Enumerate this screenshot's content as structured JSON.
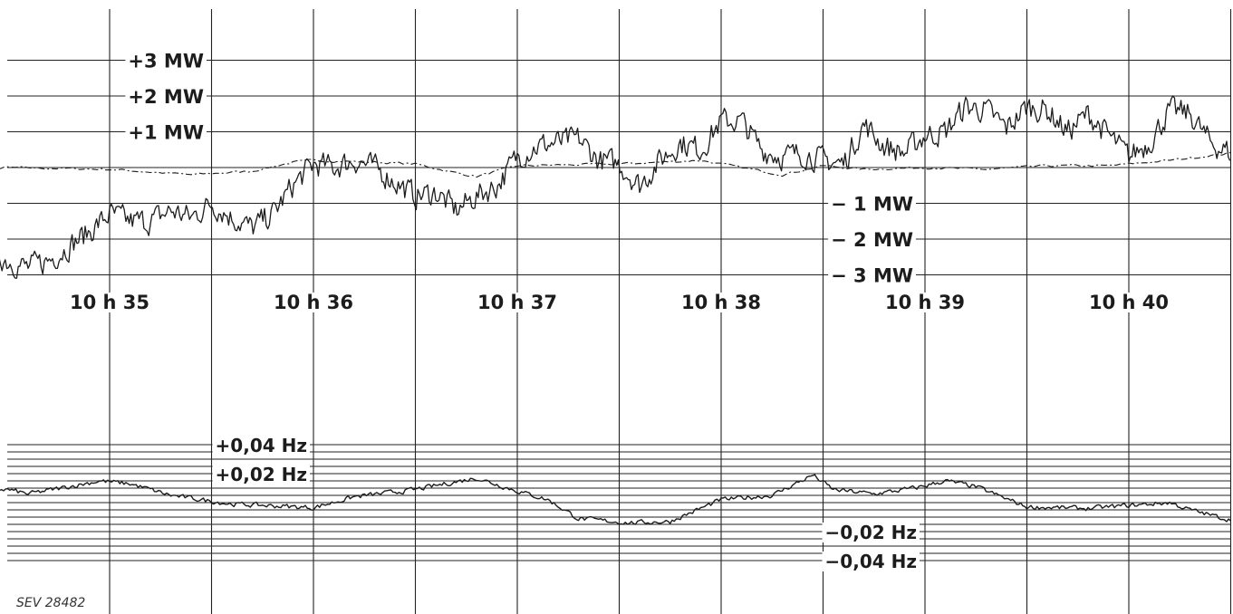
{
  "reference": "SEV 28482",
  "colors": {
    "ink": "#1c1c1c",
    "grid": "#222222",
    "paper": "#ffffff"
  },
  "chart_data": [
    {
      "type": "line",
      "panel": "power",
      "unit": "MW",
      "ylim": [
        -3,
        3
      ],
      "grid": true,
      "x_unit": "minutes after 10h35",
      "x_tick_labels": [
        "10 h 35",
        "10 h 36",
        "10 h 37",
        "10 h 38",
        "10 h 39",
        "10 h 40"
      ],
      "x_ticks": [
        0,
        1,
        2,
        3,
        4,
        5
      ],
      "xlim": [
        -1,
        5.5
      ],
      "y_ticks_upper": [
        {
          "value": 3,
          "label": "+3 MW"
        },
        {
          "value": 2,
          "label": "+2 MW"
        },
        {
          "value": 1,
          "label": "+1 MW"
        }
      ],
      "y_ticks_lower": [
        {
          "value": -1,
          "label": "− 1 MW"
        },
        {
          "value": -2,
          "label": "− 2 MW"
        },
        {
          "value": -3,
          "label": "− 3 MW"
        }
      ],
      "series": [
        {
          "style": "solid-noisy",
          "x": [
            -1.0,
            -0.85,
            -0.6,
            -0.5,
            -0.4,
            -0.3,
            -0.2,
            -0.1,
            0.0,
            0.1,
            0.2,
            0.3,
            0.4,
            0.5,
            0.6,
            0.7,
            0.8,
            0.9,
            1.0,
            1.1,
            1.2,
            1.3,
            1.4,
            1.5,
            1.6,
            1.7,
            1.8,
            1.9,
            2.0,
            2.1,
            2.2,
            2.3,
            2.4,
            2.5,
            2.6,
            2.7,
            2.8,
            2.9,
            3.0,
            3.1,
            3.2,
            3.3,
            3.4,
            3.5,
            3.6,
            3.7,
            3.8,
            3.9,
            4.0,
            4.1,
            4.2,
            4.3,
            4.4,
            4.5,
            4.6,
            4.7,
            4.8,
            4.9,
            5.0,
            5.1,
            5.2,
            5.3,
            5.4,
            5.5
          ],
          "y": [
            -2.3,
            -2.0,
            -2.3,
            -2.6,
            -2.8,
            -2.6,
            -2.2,
            -1.8,
            -1.3,
            -1.5,
            -1.5,
            -1.2,
            -1.4,
            -1.0,
            -1.4,
            -1.7,
            -1.3,
            -0.5,
            0.1,
            0.0,
            0.2,
            0.0,
            -0.4,
            -0.8,
            -0.7,
            -1.2,
            -0.8,
            -0.5,
            0.3,
            0.6,
            0.7,
            0.8,
            0.2,
            0.1,
            -0.5,
            0.2,
            0.7,
            0.5,
            1.3,
            1.3,
            0.5,
            0.3,
            0.4,
            0.2,
            0.1,
            1.2,
            0.6,
            0.4,
            0.9,
            1.0,
            1.7,
            1.6,
            1.1,
            1.7,
            1.6,
            1.0,
            1.5,
            0.9,
            0.3,
            0.7,
            1.6,
            1.5,
            0.7,
            0.4
          ],
          "amplitude": 0.32
        },
        {
          "style": "dash-dot",
          "x": [
            -1.0,
            -0.8,
            -0.5,
            0.0,
            0.4,
            0.7,
            0.9,
            1.0,
            1.3,
            1.5,
            1.7,
            1.8,
            2.0,
            2.5,
            2.9,
            3.1,
            3.3,
            3.5,
            3.7,
            4.0,
            4.3,
            4.6,
            4.9,
            5.2,
            5.5
          ],
          "y": [
            0.0,
            -0.25,
            0.0,
            -0.05,
            -0.2,
            -0.1,
            0.15,
            0.2,
            0.15,
            0.1,
            -0.15,
            -0.25,
            0.05,
            0.1,
            0.2,
            0.0,
            -0.2,
            0.05,
            -0.05,
            0.0,
            -0.05,
            0.05,
            0.05,
            0.2,
            0.4
          ],
          "amplitude": 0.03
        }
      ]
    },
    {
      "type": "line",
      "panel": "frequency",
      "unit": "Hz",
      "ylim": [
        -0.04,
        0.04
      ],
      "grid": true,
      "y_ticks_upper": [
        {
          "value": 0.04,
          "label": "+0,04 Hz"
        },
        {
          "value": 0.02,
          "label": "+0,02 Hz"
        }
      ],
      "y_ticks_lower": [
        {
          "value": -0.02,
          "label": "−0,02 Hz"
        },
        {
          "value": -0.04,
          "label": "−0,04 Hz"
        }
      ],
      "series": [
        {
          "style": "solid",
          "x": [
            -1.0,
            -0.85,
            -0.7,
            -0.5,
            -0.4,
            -0.2,
            -0.05,
            0.1,
            0.3,
            0.6,
            0.85,
            1.0,
            1.2,
            1.5,
            1.8,
            2.0,
            2.15,
            2.3,
            2.55,
            2.75,
            3.0,
            3.25,
            3.45,
            3.55,
            3.75,
            3.95,
            4.1,
            4.25,
            4.5,
            4.8,
            5.0,
            5.2,
            5.3,
            5.5
          ],
          "y": [
            0.012,
            0.016,
            0.01,
            0.009,
            0.006,
            0.011,
            0.015,
            0.013,
            0.005,
            -0.001,
            -0.0025,
            -0.0035,
            0.004,
            0.009,
            0.017,
            0.008,
            0.002,
            -0.011,
            -0.014,
            -0.013,
            0.002,
            0.005,
            0.019,
            0.009,
            0.006,
            0.01,
            0.015,
            0.011,
            -0.003,
            -0.004,
            -0.002,
            0.0,
            -0.005,
            -0.012
          ],
          "amplitude": 0.0015
        }
      ]
    }
  ]
}
